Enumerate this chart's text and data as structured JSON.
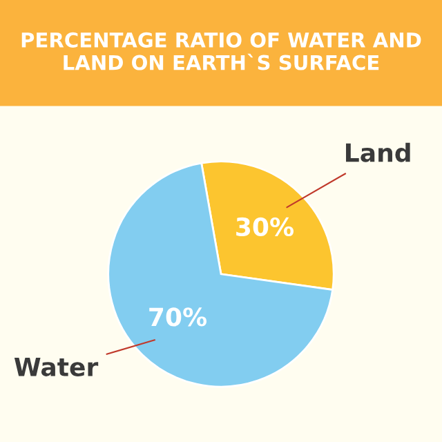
{
  "chart_data": {
    "type": "pie",
    "title": "PERCENTAGE RATIO OF WATER AND LAND ON EARTH`S SURFACE",
    "categories": [
      "Land",
      "Water"
    ],
    "values": [
      30,
      70
    ],
    "colors": [
      "#fcc52f",
      "#82cdf0"
    ],
    "value_labels": [
      "30%",
      "70%"
    ],
    "legend": false
  }
}
